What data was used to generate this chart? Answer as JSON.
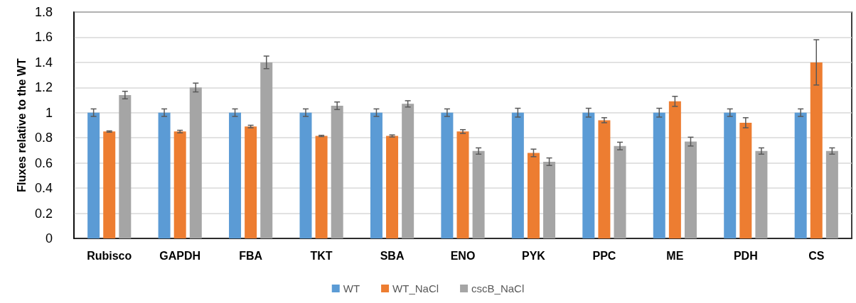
{
  "chart_data": {
    "type": "bar",
    "ylabel": "Fluxes relative to the WT",
    "categories": [
      "Rubisco",
      "GAPDH",
      "FBA",
      "TKT",
      "SBA",
      "ENO",
      "PYK",
      "PPC",
      "ME",
      "PDH",
      "CS"
    ],
    "series": [
      {
        "name": "WT",
        "color": "#5b9bd5",
        "values": [
          1,
          1,
          1,
          1,
          1,
          1,
          1,
          1,
          1,
          1,
          1
        ],
        "errors": [
          0.03,
          0.03,
          0.03,
          0.03,
          0.03,
          0.03,
          0.035,
          0.035,
          0.035,
          0.03,
          0.03
        ]
      },
      {
        "name": "WT_NaCl",
        "color": "#ed7d31",
        "values": [
          0.85,
          0.85,
          0.89,
          0.815,
          0.815,
          0.85,
          0.68,
          0.94,
          1.09,
          0.92,
          1.4
        ],
        "errors": [
          0.005,
          0.01,
          0.01,
          0.005,
          0.008,
          0.015,
          0.03,
          0.02,
          0.04,
          0.04,
          0.18
        ]
      },
      {
        "name": "cscB_NaCl",
        "color": "#a5a5a5",
        "values": [
          1.14,
          1.2,
          1.4,
          1.055,
          1.07,
          0.695,
          0.61,
          0.735,
          0.77,
          0.695,
          0.695
        ],
        "errors": [
          0.03,
          0.035,
          0.05,
          0.03,
          0.025,
          0.025,
          0.03,
          0.03,
          0.035,
          0.025,
          0.025
        ]
      }
    ],
    "ylim": [
      0,
      1.8
    ],
    "yticks": [
      0,
      0.2,
      0.4,
      0.6,
      0.8,
      1,
      1.2,
      1.4,
      1.6,
      1.8
    ],
    "grid": "y",
    "legend": "bottom"
  }
}
